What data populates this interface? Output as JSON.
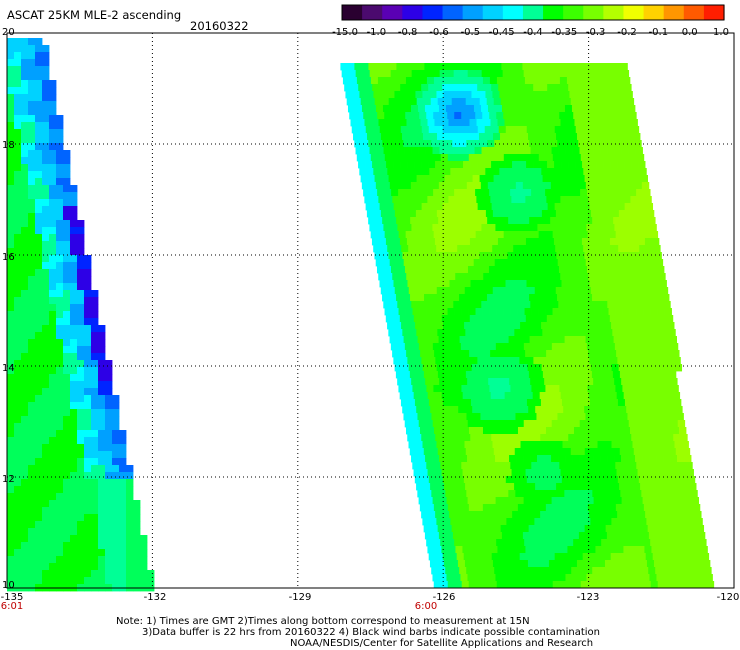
{
  "title": "ASCAT 25KM MLE-2 ascending",
  "date": "20160322",
  "colorbar": {
    "labels": [
      "-15.0",
      "-1.0",
      "-0.8",
      "-0.6",
      "-0.5",
      "-0.45",
      "-0.4",
      "-0.35",
      "-0.3",
      "-0.2",
      "-0.1",
      "0.0",
      "1.0"
    ],
    "colors": [
      "#2a0030",
      "#4b0a6e",
      "#5a00b4",
      "#2d00e6",
      "#0024ff",
      "#0064ff",
      "#00a0ff",
      "#00d2ff",
      "#00ffff",
      "#00ff96",
      "#00ff00",
      "#3cff00",
      "#78ff00",
      "#b4ff00",
      "#f0ff00",
      "#ffd200",
      "#ff9600",
      "#ff5a00",
      "#ff1e00"
    ]
  },
  "axes": {
    "lat_ticks": [
      "20",
      "18",
      "16",
      "14",
      "12",
      "10"
    ],
    "lon_ticks": [
      "-135",
      "-132",
      "-129",
      "-126",
      "-123",
      "-120"
    ],
    "lat_range": [
      10,
      20
    ],
    "lon_range": [
      -135,
      -120
    ]
  },
  "times": [
    {
      "label": "6:01",
      "lon": -135
    },
    {
      "label": "6:00",
      "lon": -126
    }
  ],
  "notes": [
    "Note: 1) Times are GMT 2)Times along bottom correspond to measurement at 15N",
    "3)Data buffer is 22 hrs from 20160322 4) Black wind barbs indicate possible contamination",
    "NOAA/NESDIS/Center for Satellite Applications and Research"
  ]
}
